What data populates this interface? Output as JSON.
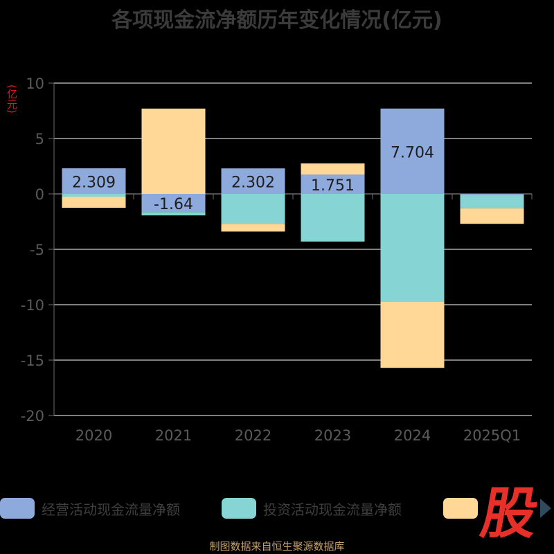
{
  "title": "各项现金流净额历年变化情况(亿元)",
  "unit_label": "(亿元)",
  "source_label": "制图数据来自恒生聚源数据库",
  "badge_text": "股",
  "colors": {
    "operating": "#8eaadc",
    "investing": "#86d4d4",
    "financing": "#ffd898",
    "grid": "#ffffff",
    "axis_text": "#5a5a5a",
    "label_text": "#1e1e1e"
  },
  "chart_data": {
    "type": "bar",
    "stacked": true,
    "title": "各项现金流净额历年变化情况(亿元)",
    "ylabel": "(亿元)",
    "categories": [
      "2020",
      "2021",
      "2022",
      "2023",
      "2024",
      "2025Q1"
    ],
    "ylim": [
      -20,
      10
    ],
    "yticks": [
      10,
      5,
      0,
      -5,
      -10,
      -15,
      -20
    ],
    "grid": true,
    "legend": "bottom",
    "series": [
      {
        "name": "经营活动现金流量净额",
        "color": "#8eaadc",
        "values": [
          2.309,
          -1.64,
          2.302,
          1.751,
          7.704,
          -0.1
        ],
        "labels": [
          "2.309",
          "-1.64",
          "2.302",
          "1.751",
          "7.704",
          ""
        ]
      },
      {
        "name": "投资活动现金流量净额",
        "color": "#86d4d4",
        "values": [
          -0.25,
          -0.3,
          -2.7,
          -4.3,
          -9.7,
          -1.2
        ]
      },
      {
        "name": "",
        "color": "#ffd898",
        "values": [
          -1.0,
          7.7,
          -0.7,
          1.0,
          -6.0,
          -1.4
        ]
      }
    ]
  }
}
